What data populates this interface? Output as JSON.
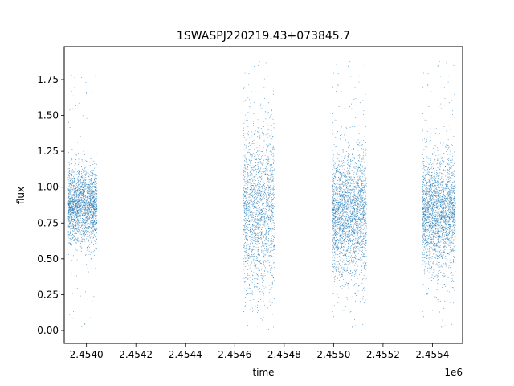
{
  "chart_data": {
    "type": "scatter",
    "title": "1SWASPJ220219.43+073845.7",
    "xlabel": "time",
    "ylabel": "flux",
    "x_offset_label": "1e6",
    "xlim": [
      2453910,
      2455522
    ],
    "ylim": [
      -0.09,
      1.98
    ],
    "x_ticks": [
      2453999.9,
      2454199.9,
      2454399.9,
      2454599.9,
      2454799.9,
      2454999.9,
      2455199.9,
      2455399.9
    ],
    "x_tick_labels": [
      "2.4540",
      "2.4542",
      "2.4544",
      "2.4546",
      "2.4548",
      "2.4550",
      "2.4552",
      "2.4554"
    ],
    "y_ticks": [
      0.0,
      0.25,
      0.5,
      0.75,
      1.0,
      1.25,
      1.5,
      1.75
    ],
    "y_tick_labels": [
      "0.00",
      "0.25",
      "0.50",
      "0.75",
      "1.00",
      "1.25",
      "1.50",
      "1.75"
    ],
    "grid": false,
    "series": [
      {
        "color": "#1f77b4",
        "point_groups": [
          {
            "time_range": [
              2453926,
              2454043
            ],
            "flux_center": 0.87,
            "flux_spread": 0.13,
            "flux_range": [
              0.02,
              1.82
            ],
            "count": 2200
          },
          {
            "time_range": [
              2454636,
              2454760
            ],
            "flux_center": 0.85,
            "flux_spread": 0.3,
            "flux_range": [
              0.0,
              1.9
            ],
            "count": 1900
          },
          {
            "time_range": [
              2454995,
              2455133
            ],
            "flux_center": 0.82,
            "flux_spread": 0.22,
            "flux_range": [
              0.0,
              1.9
            ],
            "count": 2600
          },
          {
            "time_range": [
              2455359,
              2455493
            ],
            "flux_center": 0.83,
            "flux_spread": 0.2,
            "flux_range": [
              0.0,
              1.9
            ],
            "count": 2500
          }
        ]
      }
    ]
  }
}
